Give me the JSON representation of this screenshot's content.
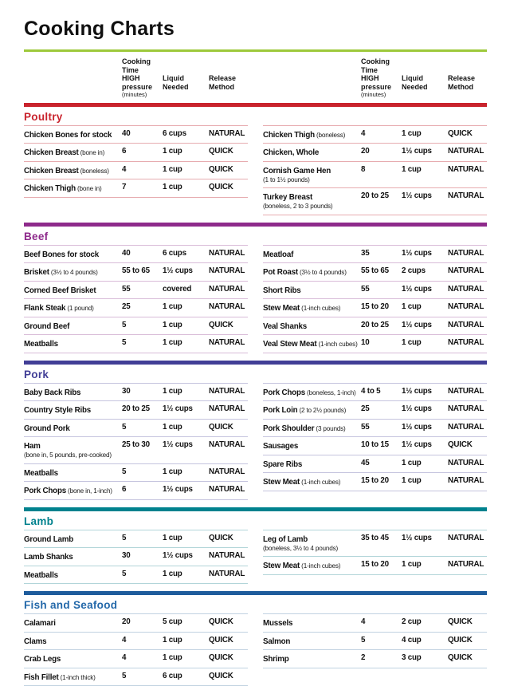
{
  "page": {
    "title": "Cooking Charts"
  },
  "header": {
    "time": "Cooking\nTime\nHIGH\npressure",
    "time_note": "(minutes)",
    "liquid": "Liquid\nNeeded",
    "release": "Release\nMethod"
  },
  "colors": {
    "title_rule": "#9DC93B"
  },
  "sections": [
    {
      "name": "Poultry",
      "color": "#C9232D",
      "heading_color": "#C9232D",
      "rule": "#E7ACB0",
      "left": [
        {
          "item": "Chicken Bones for stock",
          "time": "40",
          "liquid": "6 cups",
          "release": "NATURAL"
        },
        {
          "item": "Chicken Breast",
          "note": "(bone in)",
          "time": "6",
          "liquid": "1 cup",
          "release": "QUICK"
        },
        {
          "item": "Chicken Breast",
          "note": "(boneless)",
          "time": "4",
          "liquid": "1 cup",
          "release": "QUICK"
        },
        {
          "item": "Chicken Thigh",
          "note": "(bone in)",
          "time": "7",
          "liquid": "1 cup",
          "release": "QUICK"
        }
      ],
      "right": [
        {
          "item": "Chicken Thigh",
          "note": "(boneless)",
          "time": "4",
          "liquid": "1 cup",
          "release": "QUICK"
        },
        {
          "item": "Chicken, Whole",
          "time": "20",
          "liquid": "1½ cups",
          "release": "NATURAL"
        },
        {
          "item": "Cornish Game Hen",
          "note2": "(1 to 1½ pounds)",
          "time": "8",
          "liquid": "1 cup",
          "release": "NATURAL"
        },
        {
          "item": "Turkey Breast",
          "note2": "(boneless, 2 to 3 pounds)",
          "time": "20 to 25",
          "liquid": "1½ cups",
          "release": "NATURAL"
        }
      ]
    },
    {
      "name": "Beef",
      "color": "#8E2A8B",
      "heading_color": "#8E2A8B",
      "rule": "#D9BCD8",
      "left": [
        {
          "item": "Beef Bones for stock",
          "time": "40",
          "liquid": "6 cups",
          "release": "NATURAL"
        },
        {
          "item": "Brisket",
          "note": "(3½ to 4 pounds)",
          "time": "55 to 65",
          "liquid": "1½ cups",
          "release": "NATURAL"
        },
        {
          "item": "Corned Beef Brisket",
          "time": "55",
          "liquid": "covered",
          "release": "NATURAL"
        },
        {
          "item": "Flank Steak",
          "note": "(1 pound)",
          "time": "25",
          "liquid": "1 cup",
          "release": "NATURAL"
        },
        {
          "item": "Ground Beef",
          "time": "5",
          "liquid": "1 cup",
          "release": "QUICK"
        },
        {
          "item": "Meatballs",
          "time": "5",
          "liquid": "1 cup",
          "release": "NATURAL"
        }
      ],
      "right": [
        {
          "item": "Meatloaf",
          "time": "35",
          "liquid": "1½ cups",
          "release": "NATURAL"
        },
        {
          "item": "Pot Roast",
          "note": "(3½ to 4 pounds)",
          "time": "55 to 65",
          "liquid": "2 cups",
          "release": "NATURAL"
        },
        {
          "item": "Short Ribs",
          "time": "55",
          "liquid": "1½ cups",
          "release": "NATURAL"
        },
        {
          "item": "Stew Meat",
          "note": "(1-inch cubes)",
          "time": "15 to 20",
          "liquid": "1 cup",
          "release": "NATURAL"
        },
        {
          "item": "Veal Shanks",
          "time": "20 to 25",
          "liquid": "1½ cups",
          "release": "NATURAL"
        },
        {
          "item": "Veal Stew Meat",
          "note": "(1-inch cubes)",
          "time": "10",
          "liquid": "1 cup",
          "release": "NATURAL"
        }
      ]
    },
    {
      "name": "Pork",
      "color": "#413E96",
      "heading_color": "#413E96",
      "rule": "#C5C4DE",
      "left": [
        {
          "item": "Baby Back Ribs",
          "time": "30",
          "liquid": "1 cup",
          "release": "NATURAL"
        },
        {
          "item": "Country Style Ribs",
          "time": "20 to 25",
          "liquid": "1½ cups",
          "release": "NATURAL"
        },
        {
          "item": "Ground Pork",
          "time": "5",
          "liquid": "1 cup",
          "release": "QUICK"
        },
        {
          "item": "Ham",
          "note2": "(bone in, 5 pounds, pre-cooked)",
          "time": "25 to 30",
          "liquid": "1½ cups",
          "release": "NATURAL"
        },
        {
          "item": "Meatballs",
          "time": "5",
          "liquid": "1 cup",
          "release": "NATURAL"
        },
        {
          "item": "Pork Chops",
          "note": "(bone in, 1-inch)",
          "time": "6",
          "liquid": "1½ cups",
          "release": "NATURAL"
        }
      ],
      "right": [
        {
          "item": "Pork Chops",
          "note": "(boneless, 1-inch)",
          "time": "4 to 5",
          "liquid": "1½ cups",
          "release": "NATURAL"
        },
        {
          "item": "Pork Loin",
          "note": "(2 to 2½ pounds)",
          "time": "25",
          "liquid": "1½ cups",
          "release": "NATURAL"
        },
        {
          "item": "Pork Shoulder",
          "note": "(3 pounds)",
          "time": "55",
          "liquid": "1½ cups",
          "release": "NATURAL"
        },
        {
          "item": "Sausages",
          "time": "10 to 15",
          "liquid": "1½ cups",
          "release": "QUICK"
        },
        {
          "item": "Spare Ribs",
          "time": "45",
          "liquid": "1 cup",
          "release": "NATURAL"
        },
        {
          "item": "Stew Meat",
          "note": "(1-inch cubes)",
          "time": "15 to 20",
          "liquid": "1 cup",
          "release": "NATURAL"
        }
      ]
    },
    {
      "name": "Lamb",
      "color": "#00828E",
      "heading_color": "#00828E",
      "rule": "#B2D5D9",
      "left": [
        {
          "item": "Ground Lamb",
          "time": "5",
          "liquid": "1 cup",
          "release": "QUICK"
        },
        {
          "item": "Lamb Shanks",
          "time": "30",
          "liquid": "1½ cups",
          "release": "NATURAL"
        },
        {
          "item": "Meatballs",
          "time": "5",
          "liquid": "1 cup",
          "release": "NATURAL"
        }
      ],
      "right": [
        {
          "item": "Leg of Lamb",
          "note2": "(boneless, 3½ to 4 pounds)",
          "time": "35 to 45",
          "liquid": "1½ cups",
          "release": "NATURAL"
        },
        {
          "item": "Stew Meat",
          "note": "(1-inch cubes)",
          "time": "15 to 20",
          "liquid": "1 cup",
          "release": "NATURAL"
        }
      ]
    },
    {
      "name": "Fish and Seafood",
      "color": "#1E5C9C",
      "heading_color": "#2368A9",
      "rule": "#C1D2E1",
      "left": [
        {
          "item": "Calamari",
          "time": "20",
          "liquid": "5 cup",
          "release": "QUICK"
        },
        {
          "item": "Clams",
          "time": "4",
          "liquid": "1 cup",
          "release": "QUICK"
        },
        {
          "item": "Crab Legs",
          "time": "4",
          "liquid": "1 cup",
          "release": "QUICK"
        },
        {
          "item": "Fish Fillet",
          "note": "(1-inch thick)",
          "time": "5",
          "liquid": "6 cup",
          "release": "QUICK"
        }
      ],
      "right": [
        {
          "item": "Mussels",
          "time": "4",
          "liquid": "2 cup",
          "release": "QUICK"
        },
        {
          "item": "Salmon",
          "time": "5",
          "liquid": "4 cup",
          "release": "QUICK"
        },
        {
          "item": "Shrimp",
          "time": "2",
          "liquid": "3 cup",
          "release": "QUICK"
        }
      ]
    }
  ]
}
